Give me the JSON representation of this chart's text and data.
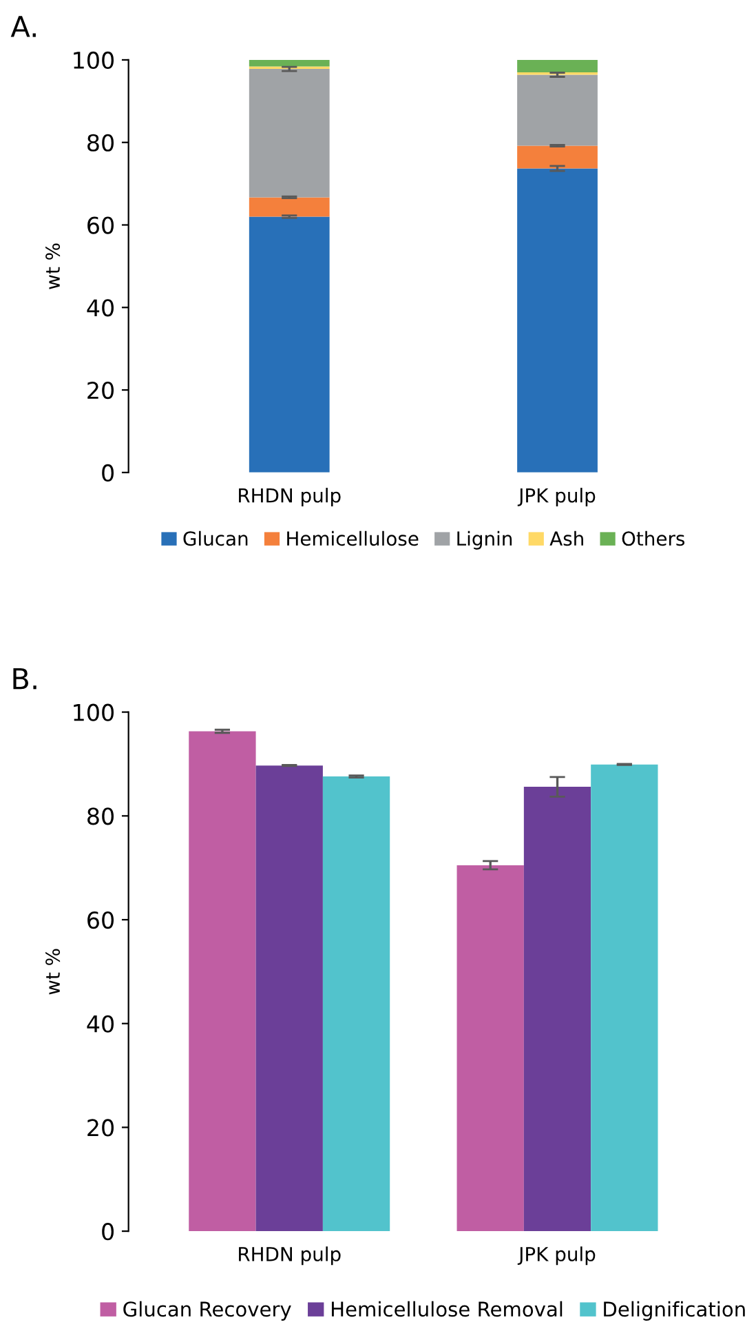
{
  "chart_data": [
    {
      "type": "bar",
      "title": "A.",
      "ylabel": "wt %",
      "categories": [
        "RHDN pulp",
        "JPK pulp"
      ],
      "stacked": true,
      "ylim": [
        0,
        100
      ],
      "yticks": [
        0,
        20,
        40,
        60,
        80,
        100
      ],
      "grid": false,
      "legend": "bottom",
      "series": [
        {
          "name": "Glucan",
          "color": "#2870b8",
          "values": [
            62.0,
            73.7
          ],
          "errors": [
            0.3,
            0.6
          ]
        },
        {
          "name": "Hemicellulose",
          "color": "#f4803c",
          "values": [
            4.7,
            5.5
          ],
          "errors": [
            0.2,
            0.2
          ]
        },
        {
          "name": "Lignin",
          "color": "#a0a3a6",
          "values": [
            31.1,
            17.2
          ],
          "errors": [
            0.5,
            0.5
          ]
        },
        {
          "name": "Ash",
          "color": "#ffd966",
          "values": [
            0.6,
            0.6
          ]
        },
        {
          "name": "Others",
          "color": "#6ab155",
          "values": [
            1.6,
            3.0
          ]
        }
      ]
    },
    {
      "type": "bar",
      "title": "B.",
      "ylabel": "wt %",
      "categories": [
        "RHDN pulp",
        "JPK pulp"
      ],
      "ylim": [
        0,
        100
      ],
      "yticks": [
        0,
        20,
        40,
        60,
        80,
        100
      ],
      "grid": false,
      "legend": "bottom",
      "series": [
        {
          "name": "Glucan Recovery",
          "color": "#c05ea3",
          "values": [
            96.3,
            70.5
          ],
          "errors": [
            0.3,
            0.8
          ]
        },
        {
          "name": "Hemicellulose Removal",
          "color": "#6b3f98",
          "values": [
            89.7,
            85.6
          ],
          "errors": [
            0.1,
            1.9
          ]
        },
        {
          "name": "Delignification",
          "color": "#52c3cc",
          "values": [
            87.6,
            89.9
          ],
          "errors": [
            0.2,
            0.1
          ]
        }
      ]
    }
  ]
}
